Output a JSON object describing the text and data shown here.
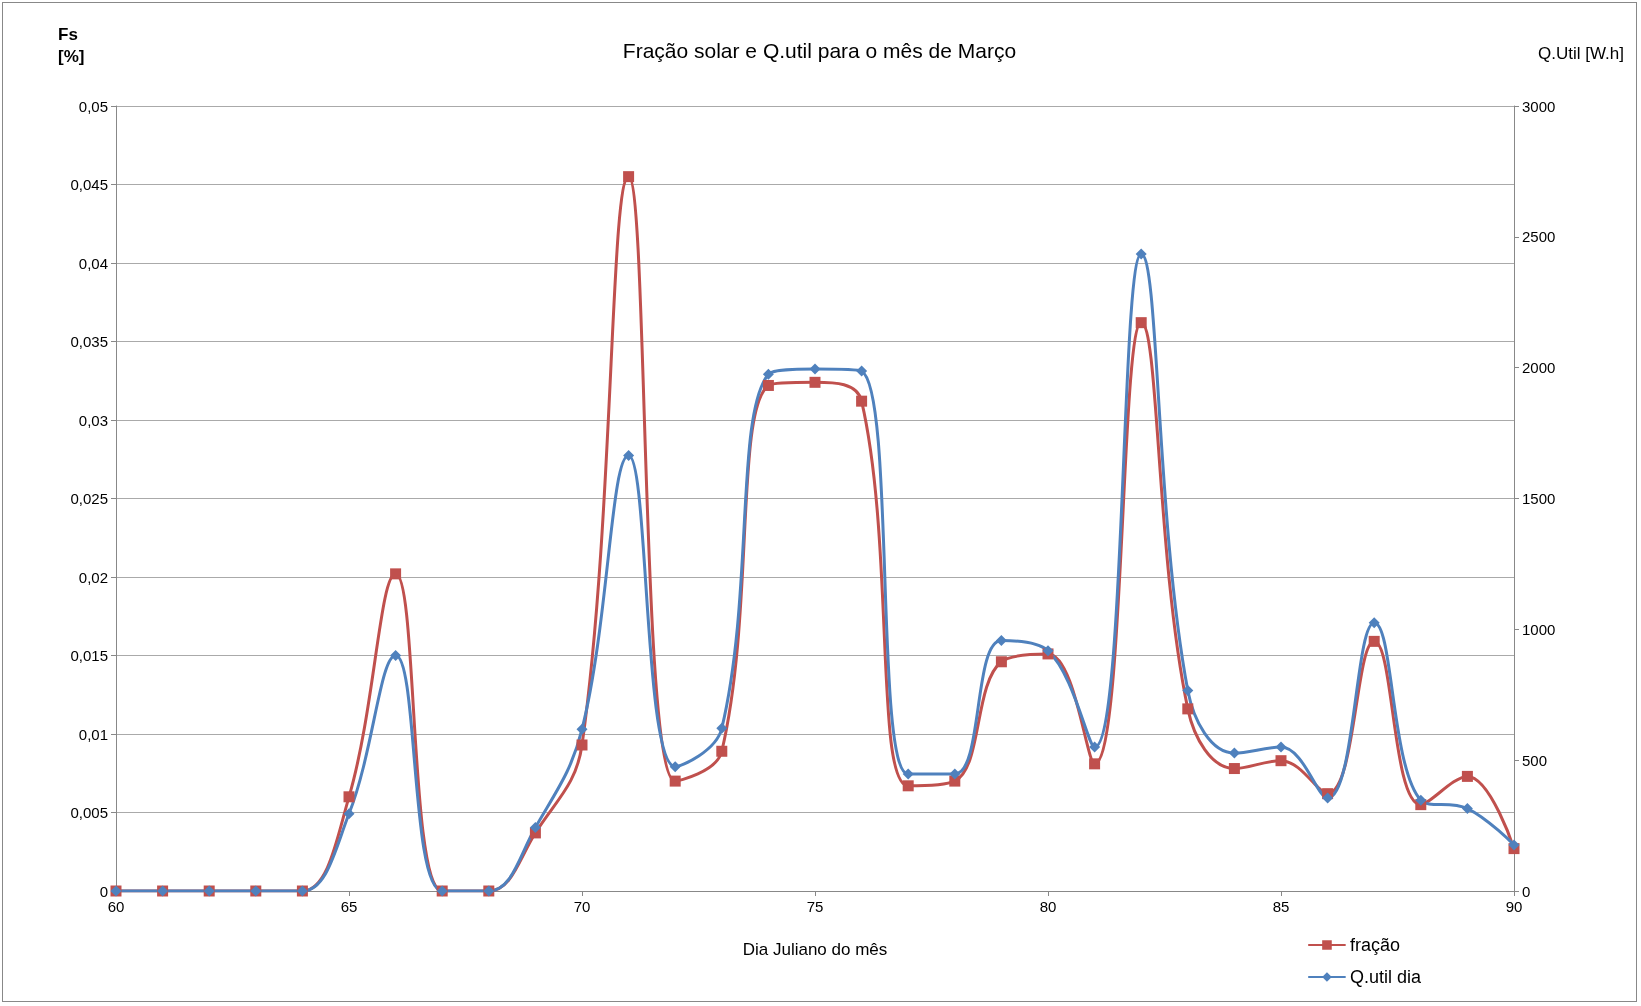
{
  "chart_data": {
    "type": "line",
    "title": "Fração solar e Q.util para o mês de Março",
    "xlabel": "Dia Juliano do mês",
    "ylabel": "Fs\n[%]",
    "y2label": "Q.Util [W.h]",
    "x": [
      60,
      61,
      62,
      63,
      64,
      65,
      66,
      67,
      68,
      69,
      70,
      71,
      72,
      73,
      74,
      75,
      76,
      77,
      78,
      79,
      80,
      81,
      82,
      83,
      84,
      85,
      86,
      87,
      88,
      89,
      90
    ],
    "series": [
      {
        "name": "fração",
        "color": "#c0504d",
        "marker": "square",
        "values": [
          0,
          0,
          0,
          0,
          0,
          0.006,
          0.0202,
          0,
          0,
          0.0037,
          0.0093,
          0.0455,
          0.007,
          0.0089,
          0.0322,
          0.0324,
          0.0312,
          0.0067,
          0.007,
          0.0146,
          0.0151,
          0.0081,
          0.0362,
          0.0116,
          0.0078,
          0.0083,
          0.0062,
          0.0159,
          0.0055,
          0.0073,
          0.0027
        ]
      },
      {
        "name": "Q.util dia",
        "color": "#4f81bd",
        "marker": "diamond",
        "axis": "y2",
        "values": [
          0,
          0,
          0,
          0,
          0,
          295,
          900,
          0,
          0,
          243,
          618,
          1664,
          475,
          622,
          1975,
          1995,
          1987,
          447,
          447,
          957,
          918,
          550,
          2434,
          766,
          527,
          550,
          355,
          1025,
          347,
          315,
          176
        ]
      }
    ],
    "xlim": [
      60,
      90
    ],
    "xticks": [
      60,
      65,
      70,
      75,
      80,
      85,
      90
    ],
    "ylim": [
      0,
      0.05
    ],
    "yticks": [
      0,
      {
        "value": 0.005,
        "label": "0,005"
      },
      {
        "value": 0.01,
        "label": "0,01"
      },
      {
        "value": 0.015,
        "label": "0,015"
      },
      {
        "value": 0.02,
        "label": "0,02"
      },
      {
        "value": 0.025,
        "label": "0,025"
      },
      {
        "value": 0.03,
        "label": "0,03"
      },
      {
        "value": 0.035,
        "label": "0,035"
      },
      {
        "value": 0.04,
        "label": "0,04"
      },
      {
        "value": 0.045,
        "label": "0,045"
      },
      {
        "value": 0.05,
        "label": "0,05"
      }
    ],
    "y2lim": [
      0,
      3000
    ],
    "y2ticks": [
      0,
      500,
      1000,
      1500,
      2000,
      2500,
      3000
    ],
    "grid": "y",
    "legend": "bottom right",
    "line_style": "solid"
  }
}
